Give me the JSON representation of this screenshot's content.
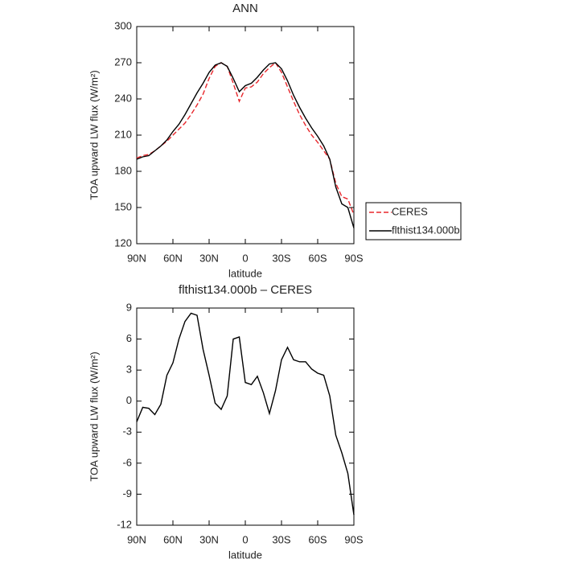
{
  "chart_data": [
    {
      "type": "line",
      "title": "ANN",
      "xlabel": "latitude",
      "ylabel": "TOA upward LW flux (W/m²)",
      "x": [
        90,
        85,
        80,
        75,
        70,
        65,
        60,
        55,
        50,
        45,
        40,
        35,
        30,
        25,
        20,
        15,
        10,
        5,
        0,
        -5,
        -10,
        -15,
        -20,
        -25,
        -30,
        -35,
        -40,
        -45,
        -50,
        -55,
        -60,
        -65,
        -70,
        -75,
        -80,
        -85,
        -90
      ],
      "series": [
        {
          "name": "CERES",
          "color": "#e8262b",
          "dash": "dashed",
          "values": [
            191,
            193,
            194,
            197,
            201,
            205,
            210,
            215,
            220,
            227,
            235,
            244,
            257,
            267,
            270,
            267,
            253,
            238,
            249,
            250,
            254,
            261,
            266,
            270,
            262,
            250,
            238,
            227,
            218,
            210,
            204,
            197,
            190,
            170,
            159,
            157,
            144
          ]
        },
        {
          "name": "flthist134.000b",
          "color": "#000000",
          "dash": "solid",
          "values": [
            190,
            192,
            193,
            197,
            201,
            206,
            213,
            219,
            227,
            236,
            245,
            253,
            262,
            268,
            270,
            267,
            257,
            246,
            251,
            253,
            258,
            264,
            269,
            270,
            265,
            255,
            243,
            233,
            224,
            216,
            209,
            201,
            190,
            167,
            153,
            150,
            133
          ]
        }
      ],
      "xlim": [
        90,
        -90
      ],
      "ylim": [
        120,
        300
      ],
      "xticks": [
        {
          "value": 90,
          "label": "90N"
        },
        {
          "value": 60,
          "label": "60N"
        },
        {
          "value": 30,
          "label": "30N"
        },
        0,
        {
          "value": -30,
          "label": "30S"
        },
        {
          "value": -60,
          "label": "60S"
        },
        {
          "value": -90,
          "label": "90S"
        }
      ],
      "yticks": [
        120,
        150,
        180,
        210,
        240,
        270,
        300
      ],
      "legend": "right"
    },
    {
      "type": "line",
      "title": "flthist134.000b – CERES",
      "xlabel": "latitude",
      "ylabel": "TOA upward LW flux (W/m²)",
      "x": [
        90,
        85,
        80,
        75,
        70,
        65,
        60,
        55,
        50,
        45,
        40,
        35,
        30,
        25,
        20,
        15,
        10,
        5,
        0,
        -5,
        -10,
        -15,
        -20,
        -25,
        -30,
        -35,
        -40,
        -45,
        -50,
        -55,
        -60,
        -65,
        -70,
        -75,
        -80,
        -85,
        -90
      ],
      "series": [
        {
          "color": "#000000",
          "dash": "solid",
          "values": [
            -2,
            -0.6,
            -0.7,
            -1.3,
            -0.3,
            2.5,
            3.7,
            6,
            7.7,
            8.5,
            8.3,
            5,
            2.5,
            -0.2,
            -0.8,
            0.5,
            6,
            6.2,
            1.8,
            1.6,
            2.4,
            0.8,
            -1.2,
            1,
            4,
            5.2,
            4,
            3.8,
            3.8,
            3.1,
            2.7,
            2.5,
            0.5,
            -3.3,
            -5,
            -7,
            -11
          ]
        }
      ],
      "xlim": [
        90,
        -90
      ],
      "ylim": [
        -12,
        9
      ],
      "xticks": [
        {
          "value": 90,
          "label": "90N"
        },
        {
          "value": 60,
          "label": "60N"
        },
        {
          "value": 30,
          "label": "30N"
        },
        0,
        {
          "value": -30,
          "label": "30S"
        },
        {
          "value": -60,
          "label": "60S"
        },
        {
          "value": -90,
          "label": "90S"
        }
      ],
      "yticks": [
        -12,
        -9,
        -6,
        -3,
        0,
        3,
        6,
        9
      ]
    }
  ]
}
